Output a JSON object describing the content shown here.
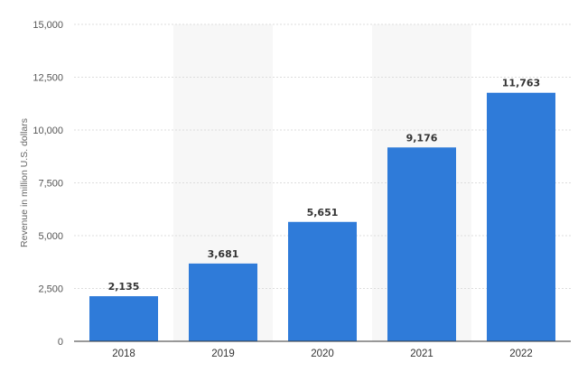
{
  "chart_data": {
    "type": "bar",
    "categories": [
      "2018",
      "2019",
      "2020",
      "2021",
      "2022"
    ],
    "values": [
      2135,
      3681,
      5651,
      9176,
      11763
    ],
    "value_labels": [
      "2,135",
      "3,681",
      "5,651",
      "9,176",
      "11,763"
    ],
    "title": "",
    "xlabel": "",
    "ylabel": "Revenue in million U.S. dollars",
    "ylim": [
      0,
      15000
    ],
    "yticks": [
      0,
      2500,
      5000,
      7500,
      10000,
      12500,
      15000
    ],
    "ytick_labels": [
      "0",
      "2,500",
      "5,000",
      "7,500",
      "10,000",
      "12,500",
      "15,000"
    ],
    "grid": true,
    "bar_color": "#2f7bd9",
    "alternate_band_color": "#f7f7f7",
    "grid_color": "#dddddd"
  }
}
